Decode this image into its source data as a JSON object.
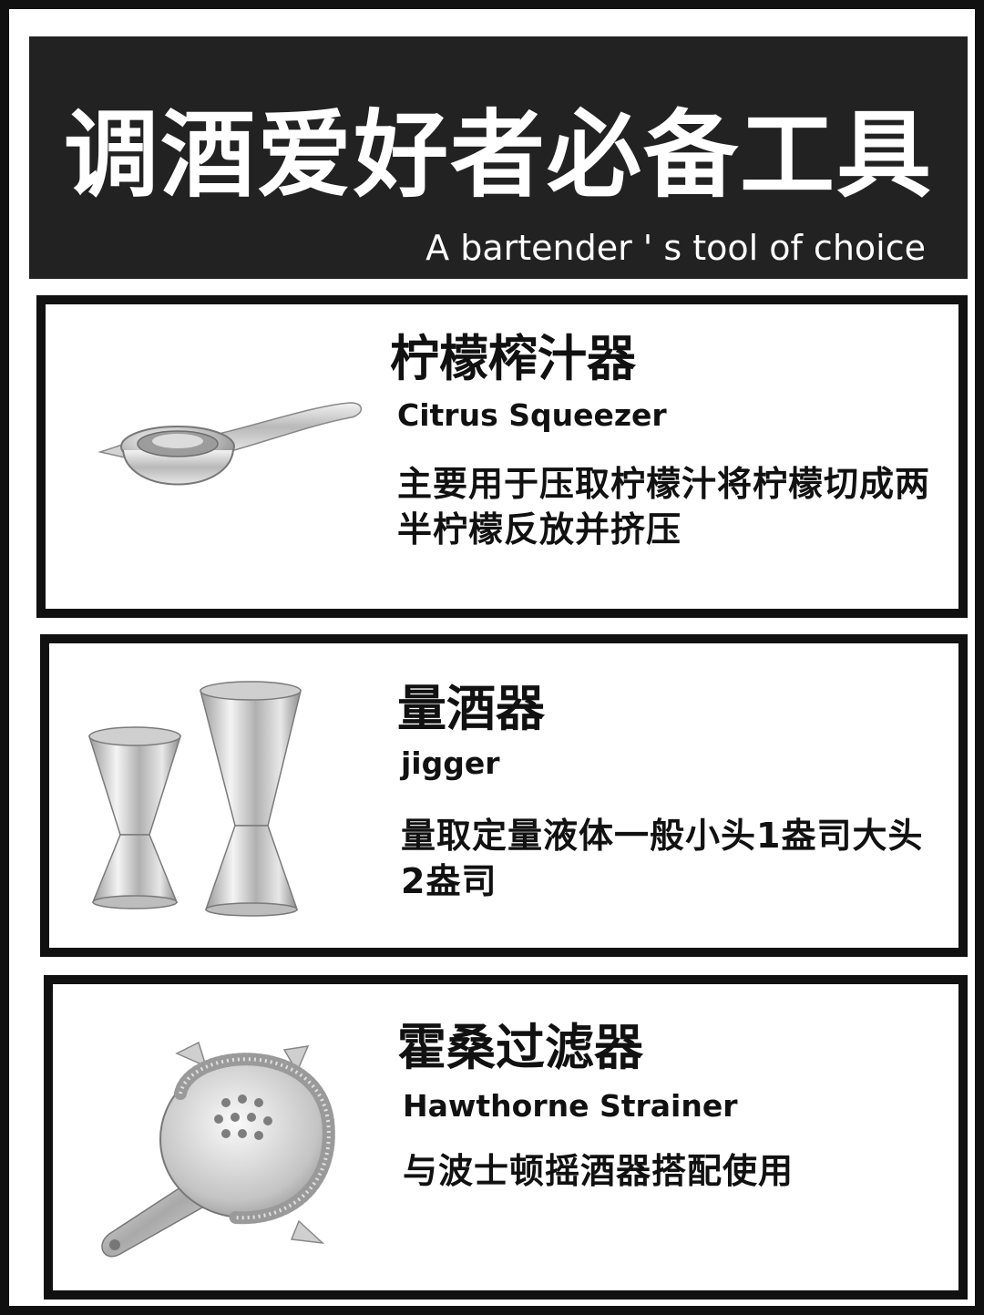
{
  "header": {
    "title": "调酒爱好者必备工具",
    "subtitle": "A bartender ' s tool of choice"
  },
  "tools": [
    {
      "name_cn": "柠檬榨汁器",
      "name_en": "Citrus Squeezer",
      "description": "主要用于压取柠檬汁将柠檬切成两半柠檬反放并挤压",
      "image_icon": "citrus-squeezer-icon"
    },
    {
      "name_cn": "量酒器",
      "name_en": "jigger",
      "description": "量取定量液体一般小头1盎司大头2盎司",
      "image_icon": "jigger-icon"
    },
    {
      "name_cn": "霍桑过滤器",
      "name_en": "Hawthorne Strainer",
      "description": "与波士顿摇酒器搭配使用",
      "image_icon": "hawthorne-strainer-icon"
    }
  ],
  "colors": {
    "header_bg": "#222222",
    "border": "#111111",
    "steel": "#c8c8c8"
  }
}
